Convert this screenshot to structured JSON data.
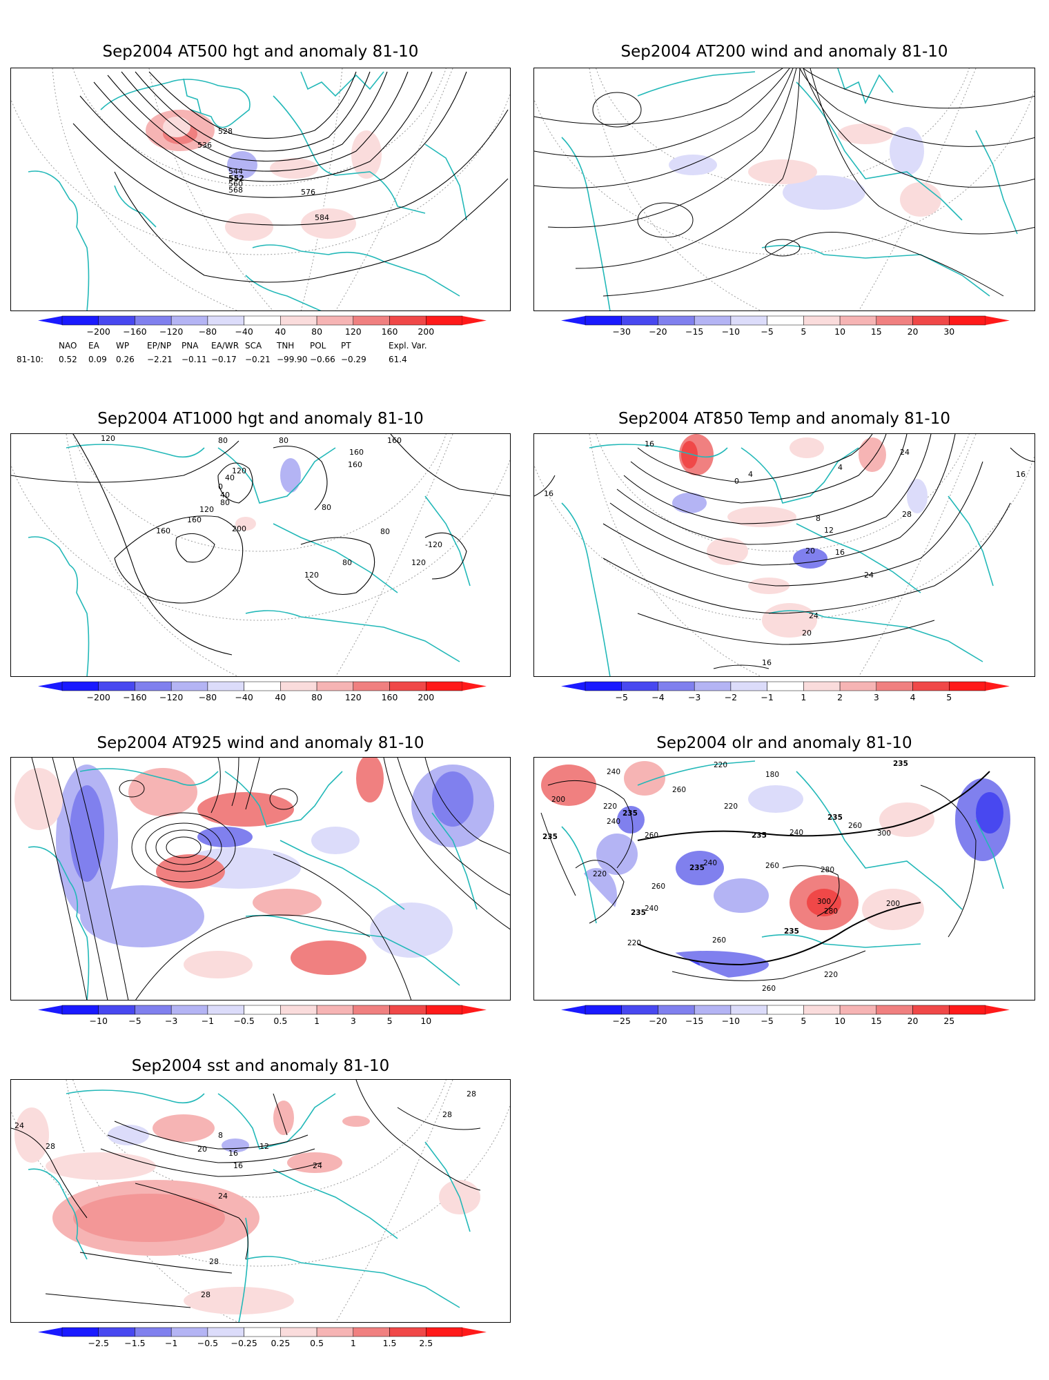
{
  "panels": [
    {
      "title": "Sep2004 AT500 hgt and anomaly 81-10",
      "contour_labels": [
        "528",
        "536",
        "544",
        "552",
        "560",
        "568",
        "576",
        "584"
      ],
      "colorbar_ticks": [
        "-200",
        "-160",
        "-120",
        "-80",
        "-40",
        "40",
        "80",
        "120",
        "160",
        "200"
      ]
    },
    {
      "title": "Sep2004 AT200 wind and anomaly 81-10",
      "contour_labels": [],
      "colorbar_ticks": [
        "-30",
        "-20",
        "-15",
        "-10",
        "-5",
        "5",
        "10",
        "15",
        "20",
        "30"
      ]
    },
    {
      "title": "Sep2004 AT1000 hgt and anomaly 81-10",
      "contour_labels": [
        "120",
        "80",
        "80",
        "160",
        "160",
        "160",
        "120",
        "40",
        "0",
        "40",
        "80",
        "120",
        "160",
        "80",
        "200",
        "160",
        "80",
        "120",
        "-120",
        "120",
        "80"
      ],
      "colorbar_ticks": [
        "-200",
        "-160",
        "-120",
        "-80",
        "-40",
        "40",
        "80",
        "120",
        "160",
        "200"
      ]
    },
    {
      "title": "Sep2004 AT850 Temp and anomaly 81-10",
      "contour_labels": [
        "16",
        "16",
        "4",
        "0",
        "4",
        "24",
        "16",
        "8",
        "12",
        "28",
        "20",
        "16",
        "24",
        "24",
        "20",
        "16"
      ],
      "colorbar_ticks": [
        "-5",
        "-4",
        "-3",
        "-2",
        "-1",
        "1",
        "2",
        "3",
        "4",
        "5"
      ]
    },
    {
      "title": "Sep2004 AT925 wind and anomaly 81-10",
      "contour_labels": [],
      "colorbar_ticks": [
        "-10",
        "-5",
        "-3",
        "-1",
        "-0.5",
        "0.5",
        "1",
        "3",
        "5",
        "10"
      ]
    },
    {
      "title": "Sep2004 olr and anomaly 81-10",
      "contour_labels": [
        "220",
        "180",
        "235",
        "240",
        "260",
        "200",
        "220",
        "240",
        "235",
        "235",
        "260",
        "220",
        "235",
        "240",
        "235",
        "260",
        "300",
        "280",
        "260",
        "240",
        "220",
        "240",
        "235",
        "260",
        "300",
        "280",
        "235",
        "235",
        "220",
        "260",
        "200",
        "260",
        "220"
      ],
      "colorbar_ticks": [
        "-25",
        "-20",
        "-15",
        "-10",
        "-5",
        "5",
        "10",
        "15",
        "20",
        "25"
      ]
    },
    {
      "title": "Sep2004 sst and anomaly 81-10",
      "contour_labels": [
        "28",
        "28",
        "24",
        "28",
        "8",
        "12",
        "16",
        "20",
        "16",
        "24",
        "24",
        "28",
        "28"
      ],
      "colorbar_ticks": [
        "-2.5",
        "-1.5",
        "-1",
        "-0.5",
        "-0.25",
        "0.25",
        "0.5",
        "1",
        "1.5",
        "2.5"
      ]
    }
  ],
  "teleconnections": {
    "names": [
      "NAO",
      "EA",
      "WP",
      "EP/NP",
      "PNA",
      "EA/WR",
      "SCA",
      "TNH",
      "POL",
      "PT",
      "Expl. Var."
    ],
    "row_label": "81-10:",
    "values": [
      "0.52",
      "0.09",
      "0.26",
      "−2.21",
      "−0.11",
      "−0.17",
      "−0.21",
      "−99.90",
      "−0.66",
      "−0.29",
      "61.4"
    ]
  },
  "colors": {
    "coastline": "#22b8b8",
    "contour": "#000000",
    "anomaly_scale": [
      "#1a1aff",
      "#4848f0",
      "#8080ee",
      "#b4b4f4",
      "#dcdcfa",
      "#ffffff",
      "#fadcdc",
      "#f6b4b4",
      "#f08080",
      "#f04848",
      "#ff1a1a"
    ]
  }
}
